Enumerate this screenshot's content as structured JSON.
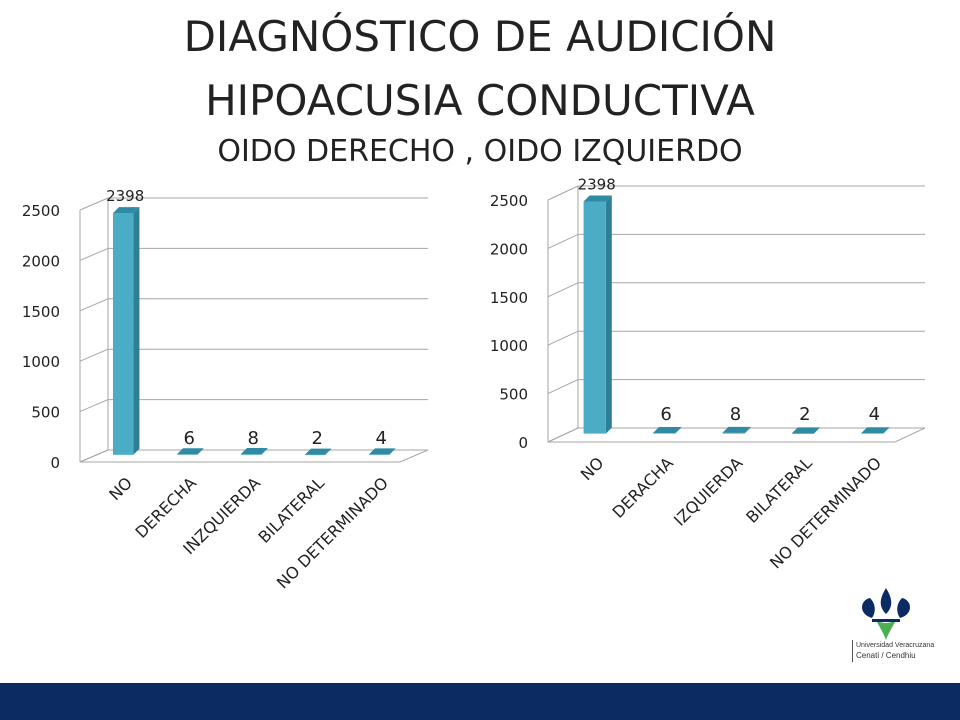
{
  "slide": {
    "title_line1": "DIAGNÓSTICO DE AUDICIÓN",
    "title_line2": "HIPOACUSIA CONDUCTIVA",
    "subtitle": "OIDO DERECHO , OIDO IZQUIERDO"
  },
  "logo": {
    "line1": "Universidad Veracruzana",
    "line2": "Cenati / Cendhiu",
    "icon": "university-flower-logo-icon"
  },
  "colors": {
    "bar": "#4bacc6",
    "footer": "#0c2b63",
    "grid": "#a6a6a6"
  },
  "chart_data": [
    {
      "type": "bar",
      "categories": [
        "NO",
        "DERECHA",
        "INZQUIERDA",
        "BILATERAL",
        "NO DETERMINADO"
      ],
      "values": [
        2398,
        6,
        8,
        2,
        4
      ],
      "data_labels": [
        "2398",
        "6",
        "8",
        "2",
        "4"
      ],
      "ylim": [
        0,
        2500
      ],
      "yticks": [
        0,
        500,
        1000,
        1500,
        2000,
        2500
      ],
      "grid": true,
      "legend": "none",
      "style": "3d-bar"
    },
    {
      "type": "bar",
      "categories": [
        "NO",
        "DERACHA",
        "IZQUIERDA",
        "BILATERAL",
        "NO  DETERMINADO"
      ],
      "values": [
        2398,
        6,
        8,
        2,
        4
      ],
      "data_labels": [
        "2398",
        "6",
        "8",
        "2",
        "4"
      ],
      "ylim": [
        0,
        2500
      ],
      "yticks": [
        0,
        500,
        1000,
        1500,
        2000,
        2500
      ],
      "grid": true,
      "legend": "none",
      "style": "3d-bar"
    }
  ]
}
